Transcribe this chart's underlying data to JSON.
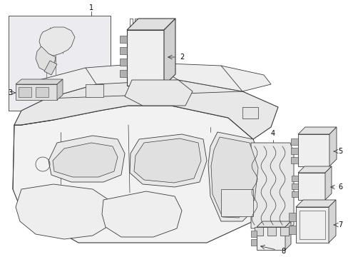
{
  "background_color": "#ffffff",
  "line_color": "#3a3a3a",
  "label_color": "#000000",
  "fig_width": 4.89,
  "fig_height": 3.6,
  "dpi": 100
}
